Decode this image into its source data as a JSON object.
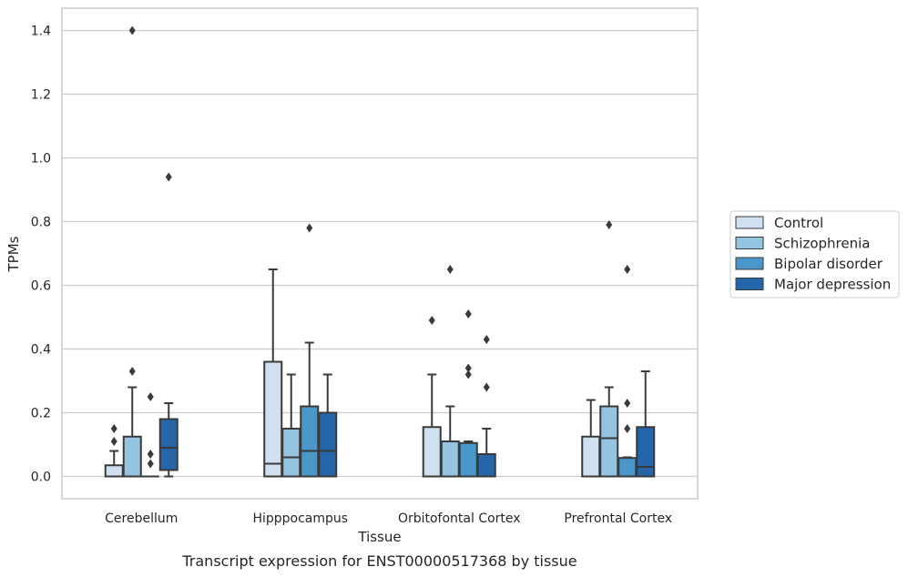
{
  "chart_data": {
    "type": "boxplot",
    "xlabel": "Tissue",
    "ylabel": "TPMs",
    "caption": "Transcript expression for ENST00000517368 by tissue",
    "ylim": [
      -0.07,
      1.47
    ],
    "yticks": [
      0.0,
      0.2,
      0.4,
      0.6,
      0.8,
      1.0,
      1.2,
      1.4
    ],
    "ytick_labels": [
      "0.0",
      "0.2",
      "0.4",
      "0.6",
      "0.8",
      "1.0",
      "1.2",
      "1.4"
    ],
    "grid": "horizontal",
    "legend_position": "right",
    "categories": [
      "Cerebellum",
      "Hipppocampus",
      "Orbitofontal Cortex",
      "Prefrontal Cortex"
    ],
    "series": [
      {
        "name": "Control",
        "color": "#d0e0f0",
        "boxes": [
          {
            "whisker_low": 0.0,
            "q1": 0.0,
            "median": 0.0,
            "q3": 0.035,
            "whisker_high": 0.08,
            "outliers": [
              0.11,
              0.15
            ]
          },
          {
            "whisker_low": 0.0,
            "q1": 0.0,
            "median": 0.04,
            "q3": 0.36,
            "whisker_high": 0.65,
            "outliers": []
          },
          {
            "whisker_low": 0.0,
            "q1": 0.0,
            "median": 0.0,
            "q3": 0.155,
            "whisker_high": 0.32,
            "outliers": [
              0.49
            ]
          },
          {
            "whisker_low": 0.0,
            "q1": 0.0,
            "median": 0.0,
            "q3": 0.125,
            "whisker_high": 0.24,
            "outliers": []
          }
        ]
      },
      {
        "name": "Schizophrenia",
        "color": "#94c4df",
        "boxes": [
          {
            "whisker_low": 0.0,
            "q1": 0.0,
            "median": 0.0,
            "q3": 0.125,
            "whisker_high": 0.28,
            "outliers": [
              0.33,
              1.4
            ]
          },
          {
            "whisker_low": 0.0,
            "q1": 0.0,
            "median": 0.06,
            "q3": 0.15,
            "whisker_high": 0.32,
            "outliers": []
          },
          {
            "whisker_low": 0.0,
            "q1": 0.0,
            "median": 0.0,
            "q3": 0.11,
            "whisker_high": 0.22,
            "outliers": [
              0.65
            ]
          },
          {
            "whisker_low": 0.0,
            "q1": 0.0,
            "median": 0.12,
            "q3": 0.22,
            "whisker_high": 0.28,
            "outliers": [
              0.79
            ]
          }
        ]
      },
      {
        "name": "Bipolar disorder",
        "color": "#4a98c9",
        "boxes": [
          {
            "whisker_low": 0.0,
            "q1": 0.0,
            "median": 0.0,
            "q3": 0.0,
            "whisker_high": 0.0,
            "outliers": [
              0.04,
              0.07,
              0.25
            ]
          },
          {
            "whisker_low": 0.0,
            "q1": 0.0,
            "median": 0.08,
            "q3": 0.22,
            "whisker_high": 0.42,
            "outliers": [
              0.78
            ]
          },
          {
            "whisker_low": 0.0,
            "q1": 0.0,
            "median": 0.0,
            "q3": 0.105,
            "whisker_high": 0.11,
            "outliers": [
              0.32,
              0.34,
              0.51
            ]
          },
          {
            "whisker_low": 0.0,
            "q1": 0.0,
            "median": 0.0,
            "q3": 0.058,
            "whisker_high": 0.06,
            "outliers": [
              0.15,
              0.23,
              0.65
            ]
          }
        ]
      },
      {
        "name": "Major depression",
        "color": "#2565a9",
        "boxes": [
          {
            "whisker_low": 0.0,
            "q1": 0.02,
            "median": 0.09,
            "q3": 0.18,
            "whisker_high": 0.23,
            "outliers": [
              0.94
            ]
          },
          {
            "whisker_low": 0.0,
            "q1": 0.0,
            "median": 0.08,
            "q3": 0.2,
            "whisker_high": 0.32,
            "outliers": []
          },
          {
            "whisker_low": 0.0,
            "q1": 0.0,
            "median": 0.0,
            "q3": 0.07,
            "whisker_high": 0.15,
            "outliers": [
              0.28,
              0.43
            ]
          },
          {
            "whisker_low": 0.0,
            "q1": 0.0,
            "median": 0.03,
            "q3": 0.155,
            "whisker_high": 0.33,
            "outliers": []
          }
        ]
      }
    ]
  }
}
